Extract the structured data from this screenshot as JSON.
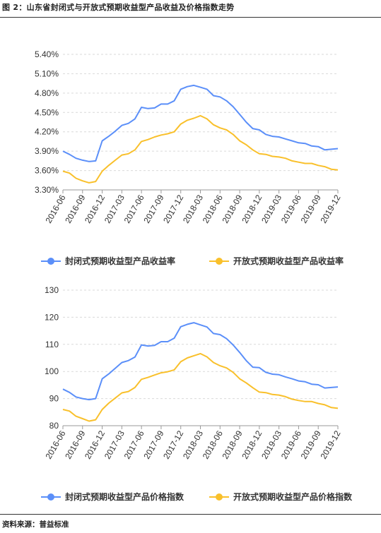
{
  "header": {
    "title": "图 2：山东省封闭式与开放式预期收益型产品收益及价格指数走势"
  },
  "footer": {
    "source": "资料来源：普益标准"
  },
  "colors": {
    "series1": "#5b8ff9",
    "series2": "#f9c02b",
    "grid": "#d9d9d9",
    "axis": "#999999"
  },
  "chart_data": [
    {
      "type": "line",
      "x": [
        "2016-06",
        "2016-07",
        "2016-08",
        "2016-09",
        "2016-10",
        "2016-11",
        "2016-12",
        "2017-01",
        "2017-02",
        "2017-03",
        "2017-04",
        "2017-05",
        "2017-06",
        "2017-07",
        "2017-08",
        "2017-09",
        "2017-10",
        "2017-11",
        "2017-12",
        "2018-01",
        "2018-02",
        "2018-03",
        "2018-04",
        "2018-05",
        "2018-06",
        "2018-07",
        "2018-08",
        "2018-09",
        "2018-10",
        "2018-11",
        "2018-12",
        "2019-01",
        "2019-02",
        "2019-03",
        "2019-04",
        "2019-05",
        "2019-06",
        "2019-07",
        "2019-08",
        "2019-09",
        "2019-10",
        "2019-11",
        "2019-12"
      ],
      "xticks": [
        "2016-06",
        "2016-09",
        "2016-12",
        "2017-03",
        "2017-06",
        "2017-09",
        "2017-12",
        "2018-03",
        "2018-06",
        "2018-09",
        "2018-12",
        "2019-03",
        "2019-06",
        "2019-09",
        "2019-12"
      ],
      "yticks": [
        "3.30%",
        "3.60%",
        "3.90%",
        "4.20%",
        "4.50%",
        "4.80%",
        "5.10%",
        "5.40%"
      ],
      "ylim": [
        3.3,
        5.4
      ],
      "series": [
        {
          "name": "封闭式预期收益型产品收益率",
          "values": [
            3.9,
            3.85,
            3.79,
            3.76,
            3.74,
            3.75,
            4.06,
            4.13,
            4.21,
            4.3,
            4.33,
            4.4,
            4.58,
            4.56,
            4.57,
            4.63,
            4.63,
            4.68,
            4.86,
            4.9,
            4.92,
            4.89,
            4.86,
            4.76,
            4.74,
            4.68,
            4.59,
            4.47,
            4.35,
            4.25,
            4.23,
            4.16,
            4.13,
            4.12,
            4.09,
            4.06,
            4.03,
            4.02,
            3.98,
            3.97,
            3.92,
            3.93,
            3.94
          ]
        },
        {
          "name": "开放式预期收益型产品收益率",
          "values": [
            3.59,
            3.56,
            3.48,
            3.44,
            3.41,
            3.43,
            3.59,
            3.68,
            3.76,
            3.84,
            3.86,
            3.92,
            4.05,
            4.08,
            4.12,
            4.15,
            4.17,
            4.2,
            4.32,
            4.38,
            4.41,
            4.45,
            4.4,
            4.31,
            4.26,
            4.23,
            4.16,
            4.06,
            4.0,
            3.92,
            3.86,
            3.85,
            3.82,
            3.81,
            3.79,
            3.75,
            3.73,
            3.71,
            3.71,
            3.68,
            3.66,
            3.62,
            3.61
          ]
        }
      ],
      "grid": true,
      "legend_position": "bottom-center"
    },
    {
      "type": "line",
      "x": [
        "2016-06",
        "2016-07",
        "2016-08",
        "2016-09",
        "2016-10",
        "2016-11",
        "2016-12",
        "2017-01",
        "2017-02",
        "2017-03",
        "2017-04",
        "2017-05",
        "2017-06",
        "2017-07",
        "2017-08",
        "2017-09",
        "2017-10",
        "2017-11",
        "2017-12",
        "2018-01",
        "2018-02",
        "2018-03",
        "2018-04",
        "2018-05",
        "2018-06",
        "2018-07",
        "2018-08",
        "2018-09",
        "2018-10",
        "2018-11",
        "2018-12",
        "2019-01",
        "2019-02",
        "2019-03",
        "2019-04",
        "2019-05",
        "2019-06",
        "2019-07",
        "2019-08",
        "2019-09",
        "2019-10",
        "2019-11",
        "2019-12"
      ],
      "xticks": [
        "2016-06",
        "2016-09",
        "2016-12",
        "2017-03",
        "2017-06",
        "2017-09",
        "2017-12",
        "2018-03",
        "2018-06",
        "2018-09",
        "2018-12",
        "2019-03",
        "2019-06",
        "2019-09",
        "2019-12"
      ],
      "yticks": [
        "80",
        "90",
        "100",
        "110",
        "120",
        "130"
      ],
      "ylim": [
        80,
        130
      ],
      "series": [
        {
          "name": "封闭式预期收益型产品价格指数",
          "values": [
            93.5,
            92.3,
            90.6,
            90.0,
            89.6,
            90.0,
            97.3,
            99.1,
            101.2,
            103.3,
            104.0,
            105.3,
            109.8,
            109.4,
            109.6,
            111.0,
            111.0,
            112.3,
            116.5,
            117.4,
            118.0,
            117.2,
            116.4,
            114.0,
            113.6,
            112.1,
            109.8,
            107.0,
            104.0,
            101.6,
            101.4,
            99.7,
            99.0,
            98.8,
            98.0,
            97.3,
            96.5,
            96.2,
            95.3,
            95.1,
            93.9,
            94.1,
            94.3
          ]
        },
        {
          "name": "开放式预期收益型产品价格指数",
          "values": [
            86.0,
            85.4,
            83.5,
            82.6,
            81.7,
            82.2,
            86.0,
            88.3,
            90.2,
            92.1,
            92.6,
            94.1,
            97.1,
            97.8,
            98.7,
            99.5,
            99.9,
            100.6,
            103.6,
            105.0,
            105.8,
            106.6,
            105.4,
            103.3,
            102.1,
            101.3,
            99.7,
            97.3,
            95.8,
            94.0,
            92.4,
            92.2,
            91.5,
            91.3,
            90.7,
            89.8,
            89.3,
            88.9,
            88.9,
            88.2,
            87.7,
            86.7,
            86.4
          ]
        }
      ],
      "grid": true,
      "legend_position": "bottom-center"
    }
  ]
}
